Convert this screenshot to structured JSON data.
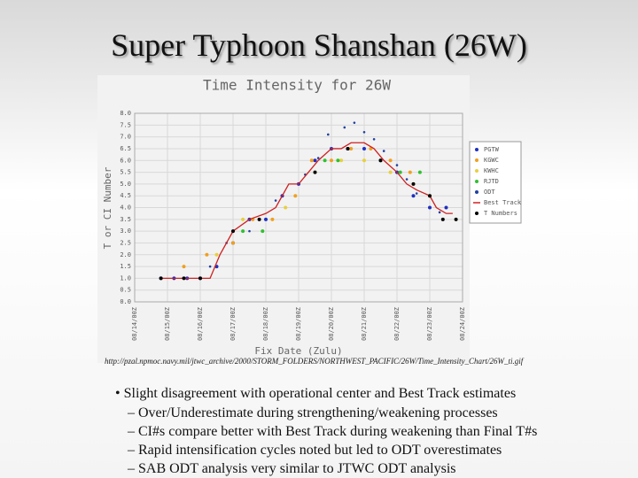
{
  "title": "Super Typhoon Shanshan (26W)",
  "chart_data": {
    "type": "scatter",
    "title": "Time Intensity for 26W",
    "x_label": "Fix Date (Zulu)",
    "y_label": "T or CI Number",
    "xlim": [
      14,
      24
    ],
    "xticks": [
      {
        "value": 14,
        "label": "08/14/00Z"
      },
      {
        "value": 15,
        "label": "08/15/00Z"
      },
      {
        "value": 16,
        "label": "08/16/00Z"
      },
      {
        "value": 17,
        "label": "08/17/00Z"
      },
      {
        "value": 18,
        "label": "08/18/00Z"
      },
      {
        "value": 19,
        "label": "08/19/00Z"
      },
      {
        "value": 20,
        "label": "08/20/00Z"
      },
      {
        "value": 21,
        "label": "08/21/00Z"
      },
      {
        "value": 22,
        "label": "08/22/00Z"
      },
      {
        "value": 23,
        "label": "08/23/00Z"
      },
      {
        "value": 24,
        "label": "08/24/00Z"
      }
    ],
    "ylim": [
      0,
      8
    ],
    "yticks": [
      {
        "value": 0,
        "label": "0.0"
      },
      0.5,
      {
        "value": 1,
        "label": "1.0"
      },
      1.5,
      {
        "value": 2,
        "label": "2.0"
      },
      2.5,
      {
        "value": 3,
        "label": "3.0"
      },
      3.5,
      {
        "value": 4,
        "label": "4.0"
      },
      4.5,
      {
        "value": 5,
        "label": "5.0"
      },
      5.5,
      {
        "value": 6,
        "label": "6.0"
      },
      6.5,
      {
        "value": 7,
        "label": "7.0"
      },
      7.5,
      {
        "value": 8,
        "label": "8.0"
      }
    ],
    "grid": true,
    "series": [
      {
        "name": "PGTW",
        "color": "#1f2fbf",
        "marker": "dot",
        "x": [
          14.8,
          15.2,
          15.6,
          16.0,
          16.5,
          17.0,
          17.5,
          18.0,
          18.5,
          19.0,
          19.5,
          20.0,
          20.5,
          21.0,
          21.5,
          22.0,
          22.5,
          23.0,
          23.5
        ],
        "values": [
          1.0,
          1.0,
          1.0,
          1.0,
          1.5,
          2.5,
          3.5,
          3.5,
          4.5,
          5.0,
          6.0,
          6.5,
          6.5,
          6.5,
          6.0,
          5.5,
          4.5,
          4.0,
          4.0
        ]
      },
      {
        "name": "KGWC",
        "color": "#f0a020",
        "marker": "dot",
        "x": [
          15.5,
          16.2,
          17.0,
          17.6,
          18.2,
          18.9,
          19.4,
          20.0,
          20.6,
          21.2,
          21.8,
          22.4,
          23.0
        ],
        "values": [
          1.5,
          2.0,
          2.5,
          3.5,
          3.5,
          4.5,
          6.0,
          6.0,
          6.5,
          6.5,
          6.0,
          5.5,
          4.5
        ]
      },
      {
        "name": "KWHC",
        "color": "#e8d040",
        "marker": "dot",
        "x": [
          16.5,
          17.3,
          18.6,
          19.5,
          20.3,
          21.0,
          21.8,
          22.5
        ],
        "values": [
          2.0,
          3.5,
          4.0,
          5.5,
          6.0,
          6.0,
          5.5,
          5.0
        ]
      },
      {
        "name": "RJTD",
        "color": "#30c030",
        "marker": "dot",
        "x": [
          17.3,
          17.9,
          19.8,
          20.2,
          21.5,
          22.1,
          22.7
        ],
        "values": [
          3.0,
          3.0,
          6.0,
          6.0,
          6.0,
          5.5,
          5.5
        ]
      },
      {
        "name": "ODT",
        "color": "#2040a0",
        "marker": "small",
        "x": [
          16.3,
          16.8,
          17.5,
          18.3,
          19.2,
          19.6,
          19.9,
          20.4,
          20.7,
          21.0,
          21.3,
          21.6,
          22.0,
          22.3,
          22.6,
          23.0,
          23.3
        ],
        "values": [
          1.5,
          2.5,
          3.0,
          4.3,
          5.4,
          6.1,
          7.1,
          7.4,
          7.6,
          7.2,
          6.9,
          6.4,
          5.8,
          5.2,
          4.6,
          4.5,
          3.8
        ]
      },
      {
        "name": "Best Track",
        "color": "#d02020",
        "marker": "line",
        "x": [
          14.8,
          16.3,
          16.6,
          17.0,
          17.5,
          18.0,
          18.3,
          18.7,
          19.0,
          19.3,
          19.6,
          20.0,
          20.3,
          20.6,
          21.0,
          21.3,
          21.6,
          22.0,
          22.3,
          22.6,
          23.0,
          23.2,
          23.5,
          23.7
        ],
        "values": [
          1.0,
          1.0,
          2.0,
          3.0,
          3.5,
          3.75,
          4.0,
          5.0,
          5.0,
          5.5,
          6.0,
          6.5,
          6.5,
          6.75,
          6.75,
          6.5,
          6.0,
          5.5,
          5.0,
          4.75,
          4.5,
          4.0,
          3.75,
          3.75
        ]
      },
      {
        "name": "T Numbers",
        "color": "#000000",
        "marker": "dot",
        "x": [
          14.8,
          15.5,
          16.0,
          17.0,
          17.8,
          19.5,
          20.5,
          21.5,
          22.5,
          23.0,
          23.4,
          23.8
        ],
        "values": [
          1.0,
          1.0,
          1.0,
          3.0,
          3.5,
          5.5,
          6.5,
          6.0,
          5.0,
          4.5,
          3.5,
          3.5
        ]
      }
    ]
  },
  "source_url": "http://pzal.npmoc.navy.mil/jtwc_archive/2000/STORM_FOLDERS/NORTHWEST_PACIFIC/26W/Time_Intensity_Chart/26W_ti.gif",
  "bullets": [
    {
      "text": "Slight disagreement with operational center and Best Track estimates",
      "sub": [
        "Over/Underestimate during strengthening/weakening processes",
        "CI#s compare better with Best Track during weakening than Final T#s",
        "Rapid intensification cycles noted but led to ODT overestimates",
        "SAB ODT analysis very similar to JTWC ODT analysis"
      ]
    }
  ]
}
